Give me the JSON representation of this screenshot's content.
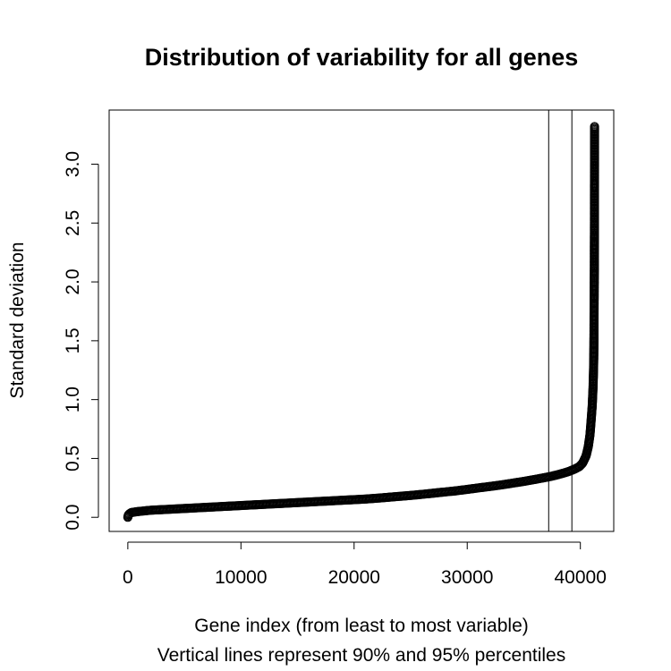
{
  "chart_data": {
    "type": "scatter",
    "title": "Distribution of variability for all genes",
    "xlabel": "Gene index (from least to most variable)",
    "xlabel2": "Vertical lines represent 90% and 95% percentiles",
    "ylabel": "Standard deviation",
    "xlim": [
      -1650,
      42950
    ],
    "ylim": [
      -0.12,
      3.46
    ],
    "x_ticks": [
      0,
      10000,
      20000,
      30000,
      40000
    ],
    "x_tick_labels": [
      "0",
      "10000",
      "20000",
      "30000",
      "40000"
    ],
    "y_ticks": [
      0.0,
      0.5,
      1.0,
      1.5,
      2.0,
      2.5,
      3.0
    ],
    "y_tick_labels": [
      "0.0",
      "0.5",
      "1.0",
      "1.5",
      "2.0",
      "2.5",
      "3.0"
    ],
    "vlines": [
      {
        "label": "90% percentile",
        "x": 37200
      },
      {
        "label": "95% percentile",
        "x": 39250
      }
    ],
    "grid": false,
    "marker": "open-circle",
    "series": [
      {
        "points": [
          [
            0,
            0.0
          ],
          [
            50,
            0.02
          ],
          [
            150,
            0.03
          ],
          [
            300,
            0.04
          ],
          [
            600,
            0.045
          ],
          [
            1000,
            0.05
          ],
          [
            1500,
            0.055
          ],
          [
            2000,
            0.06
          ],
          [
            3000,
            0.065
          ],
          [
            4000,
            0.07
          ],
          [
            5000,
            0.075
          ],
          [
            6000,
            0.08
          ],
          [
            7000,
            0.085
          ],
          [
            8000,
            0.09
          ],
          [
            9000,
            0.095
          ],
          [
            10000,
            0.1
          ],
          [
            11000,
            0.105
          ],
          [
            12000,
            0.11
          ],
          [
            13000,
            0.115
          ],
          [
            14000,
            0.12
          ],
          [
            15000,
            0.125
          ],
          [
            16000,
            0.13
          ],
          [
            17000,
            0.135
          ],
          [
            18000,
            0.14
          ],
          [
            19000,
            0.145
          ],
          [
            20000,
            0.15
          ],
          [
            21000,
            0.155
          ],
          [
            22000,
            0.162
          ],
          [
            23000,
            0.17
          ],
          [
            24000,
            0.178
          ],
          [
            25000,
            0.186
          ],
          [
            26000,
            0.195
          ],
          [
            27000,
            0.205
          ],
          [
            28000,
            0.215
          ],
          [
            29000,
            0.225
          ],
          [
            30000,
            0.237
          ],
          [
            31000,
            0.25
          ],
          [
            32000,
            0.262
          ],
          [
            33000,
            0.275
          ],
          [
            34000,
            0.29
          ],
          [
            35000,
            0.305
          ],
          [
            36000,
            0.322
          ],
          [
            37000,
            0.34
          ],
          [
            37500,
            0.35
          ],
          [
            38000,
            0.362
          ],
          [
            38500,
            0.375
          ],
          [
            39000,
            0.39
          ],
          [
            39500,
            0.41
          ],
          [
            39900,
            0.43
          ],
          [
            40200,
            0.46
          ],
          [
            40500,
            0.52
          ],
          [
            40700,
            0.6
          ],
          [
            40850,
            0.7
          ],
          [
            40950,
            0.82
          ],
          [
            41050,
            0.95
          ],
          [
            41120,
            1.1
          ],
          [
            41150,
            1.2
          ],
          [
            41170,
            1.28
          ],
          [
            41185,
            1.35
          ],
          [
            41190,
            1.4
          ],
          [
            41195,
            1.45
          ],
          [
            41200,
            1.5
          ],
          [
            41203,
            1.55
          ],
          [
            41206,
            1.63
          ],
          [
            41209,
            1.7
          ],
          [
            41212,
            1.75
          ],
          [
            41215,
            1.8
          ],
          [
            41218,
            1.85
          ],
          [
            41221,
            1.88
          ],
          [
            41224,
            1.95
          ],
          [
            41227,
            2.0
          ],
          [
            41230,
            2.05
          ],
          [
            41232,
            2.08
          ],
          [
            41234,
            2.1
          ],
          [
            41236,
            2.27
          ],
          [
            41238,
            2.33
          ],
          [
            41240,
            2.37
          ],
          [
            41242,
            2.4
          ],
          [
            41244,
            2.5
          ],
          [
            41246,
            2.8
          ],
          [
            41248,
            2.84
          ],
          [
            41250,
            2.93
          ],
          [
            41252,
            3.01
          ],
          [
            41254,
            3.32
          ]
        ]
      }
    ]
  }
}
